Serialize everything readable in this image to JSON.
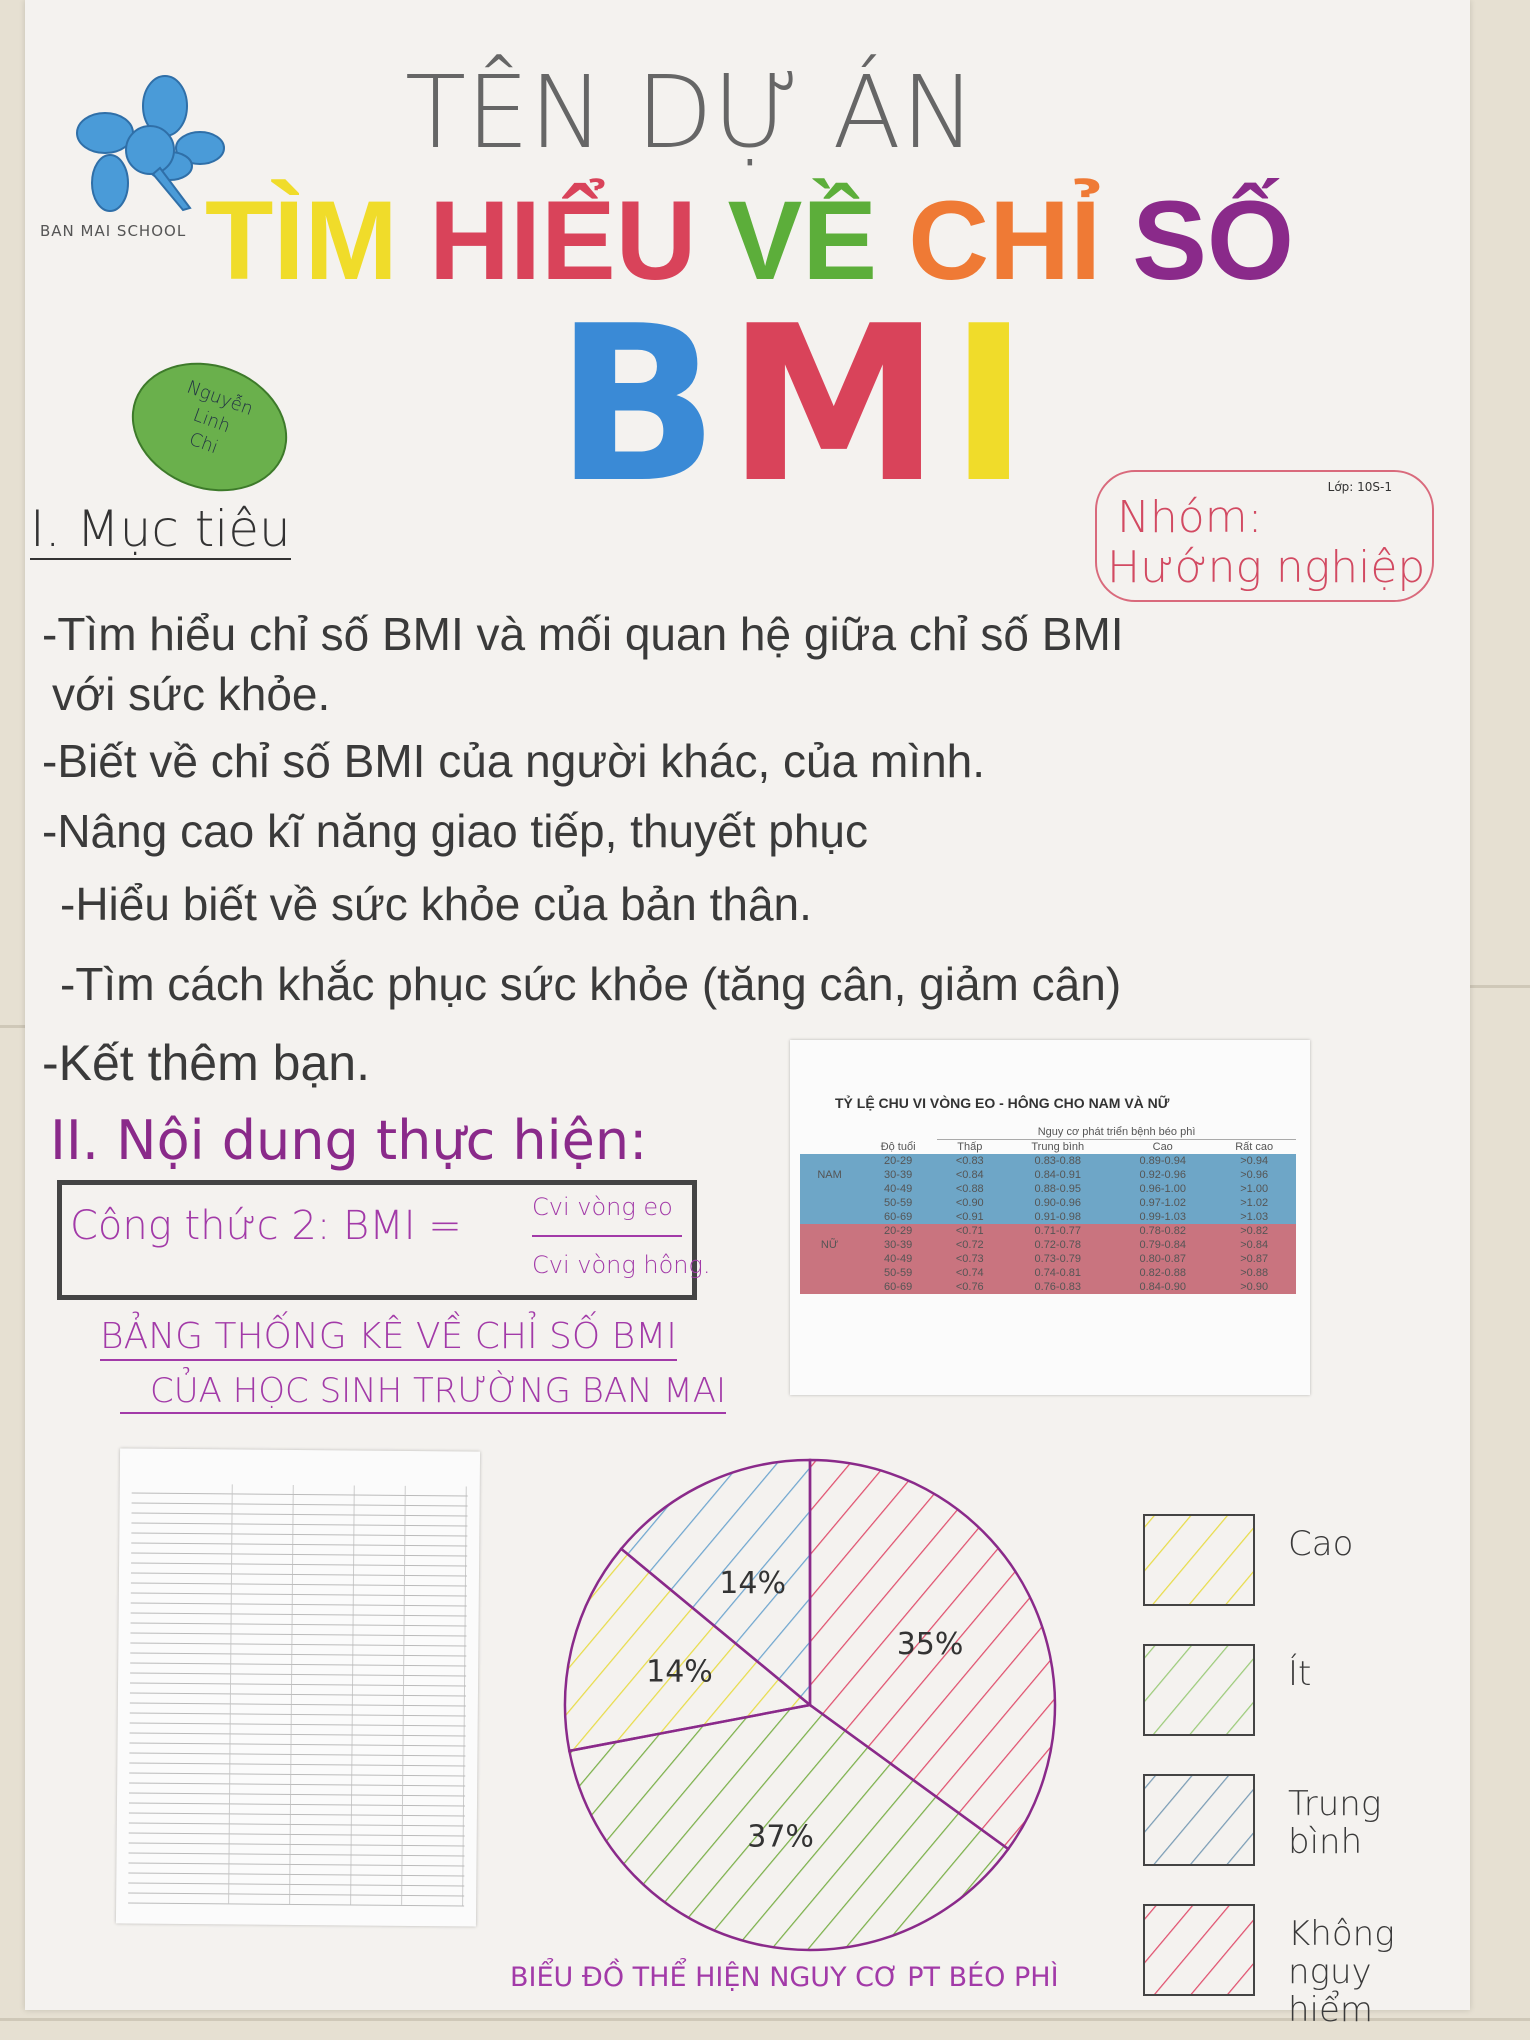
{
  "poster": {
    "logo_text": "BAN MAI SCHOOL",
    "project_label": "TÊN DỰ ÁN",
    "title_words": [
      {
        "text": "TÌM",
        "color": "#f0dc2a"
      },
      {
        "text": "HIỂU",
        "color": "#d9435a"
      },
      {
        "text": "VỀ",
        "color": "#5cae3a"
      },
      {
        "text": "CHỈ",
        "color": "#ef7a35"
      },
      {
        "text": "SỐ",
        "color": "#8a2a8a"
      }
    ],
    "bmi_letters": [
      {
        "text": "B",
        "color": "#3a8ad6"
      },
      {
        "text": "M",
        "color": "#d9435a"
      },
      {
        "text": "I",
        "color": "#f0dc2a"
      }
    ],
    "author_badge": [
      "Nguyễn",
      "Linh",
      "Chi"
    ],
    "group_box": {
      "class_label": "Lớp: 10S-1",
      "line1": "Nhóm:",
      "line2": "Hướng nghiệp"
    }
  },
  "section1": {
    "heading": "I. Mục tiêu",
    "items": [
      "-Tìm hiểu chỉ số BMI và mối quan hệ giữa chỉ số BMI",
      "với sức khỏe.",
      "-Biết về chỉ số BMI của người khác, của mình.",
      "-Nâng cao kĩ năng giao tiếp, thuyết phục",
      "-Hiểu biết về sức khỏe của bản thân.",
      "-Tìm cách khắc phục sức khỏe (tăng cân, giảm cân)",
      "-Kết thêm bạn."
    ]
  },
  "section2": {
    "heading": "II. Nội dung thực hiện:",
    "formula": {
      "label": "Công thức 2: BMI =",
      "numerator": "Cvi vòng eo",
      "denominator": "Cvi vòng hông."
    },
    "stats_title_line1": "BẢNG THỐNG KÊ VỀ CHỈ SỐ BMI",
    "stats_title_line2": "CỦA HỌC SINH TRƯỜNG BAN MAI"
  },
  "ratio_table": {
    "title": "TỶ LỆ CHU VI VÒNG EO - HÔNG CHO NAM VÀ NỮ",
    "group_header": "Nguy cơ phát triển bệnh béo phì",
    "columns": [
      "Độ tuổi",
      "Thấp",
      "Trung bình",
      "Cao",
      "Rất cao"
    ],
    "groups": [
      {
        "name": "NAM",
        "color": "#6ea6c7",
        "rows": [
          [
            "20-29",
            "<0.83",
            "0.83-0.88",
            "0.89-0.94",
            ">0.94"
          ],
          [
            "30-39",
            "<0.84",
            "0.84-0.91",
            "0.92-0.96",
            ">0.96"
          ],
          [
            "40-49",
            "<0.88",
            "0.88-0.95",
            "0.96-1.00",
            ">1.00"
          ],
          [
            "50-59",
            "<0.90",
            "0.90-0.96",
            "0.97-1.02",
            ">1.02"
          ],
          [
            "60-69",
            "<0.91",
            "0.91-0.98",
            "0.99-1.03",
            ">1.03"
          ]
        ]
      },
      {
        "name": "NỮ",
        "color": "#c9747f",
        "rows": [
          [
            "20-29",
            "<0.71",
            "0.71-0.77",
            "0.78-0.82",
            ">0.82"
          ],
          [
            "30-39",
            "<0.72",
            "0.72-0.78",
            "0.79-0.84",
            ">0.84"
          ],
          [
            "40-49",
            "<0.73",
            "0.73-0.79",
            "0.80-0.87",
            ">0.87"
          ],
          [
            "50-59",
            "<0.74",
            "0.74-0.81",
            "0.82-0.88",
            ">0.88"
          ],
          [
            "60-69",
            "<0.76",
            "0.76-0.83",
            "0.84-0.90",
            ">0.90"
          ]
        ]
      }
    ]
  },
  "chart_data": {
    "type": "pie",
    "title": "BIỂU ĐỒ THỂ HIỆN NGUY CƠ PT BÉO PHÌ",
    "slices": [
      {
        "label": "Không nguy hiểm",
        "value": 35,
        "display": "35%",
        "color": "#e0506e"
      },
      {
        "label": "Ít",
        "value": 37,
        "display": "37%",
        "color": "#7bb04a"
      },
      {
        "label": "Cao",
        "value": 14,
        "display": "14%",
        "color": "#e8dc4a"
      },
      {
        "label": "Trung bình",
        "value": 14,
        "display": "14%",
        "color": "#6fa6cf"
      }
    ],
    "legend": [
      {
        "label": "Cao",
        "color": "#e8dc4a"
      },
      {
        "label": "Ít",
        "color": "#9ccb7a"
      },
      {
        "label": "Trung bình",
        "color": "#7a9cb5"
      },
      {
        "label": "Không nguy hiểm",
        "color": "#e0506e"
      }
    ],
    "legend_position": "right",
    "outline_color": "#8a2a8a"
  }
}
